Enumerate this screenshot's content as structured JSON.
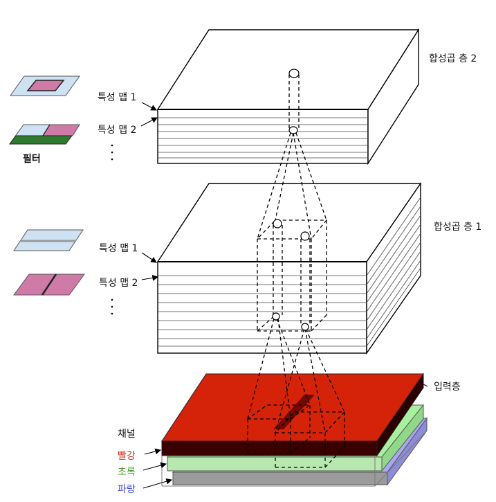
{
  "layers": {
    "conv2": "합성곱 층 2",
    "conv1": "합성곱 층 1",
    "input": "입력층"
  },
  "feature_maps": {
    "conv2": [
      "특성 맵 1",
      "특성 맵 2"
    ],
    "conv1": [
      "특성 맵 1",
      "특성 맵 2"
    ]
  },
  "filter_label": "필터",
  "channels": {
    "title": "채널",
    "items": [
      {
        "label": "빨강",
        "color": "#d42a1a"
      },
      {
        "label": "초록",
        "color": "#4a9a2e"
      },
      {
        "label": "파랑",
        "color": "#4a4ad8"
      }
    ]
  },
  "colors": {
    "red_layer": "#d42308",
    "green_layer": "#a8f0a0",
    "blue_layer": "#a8a8f0",
    "filter_pink": "#d07aa8",
    "filter_light_blue": "#cfe2f3",
    "filter_green": "#2f7a2f"
  }
}
